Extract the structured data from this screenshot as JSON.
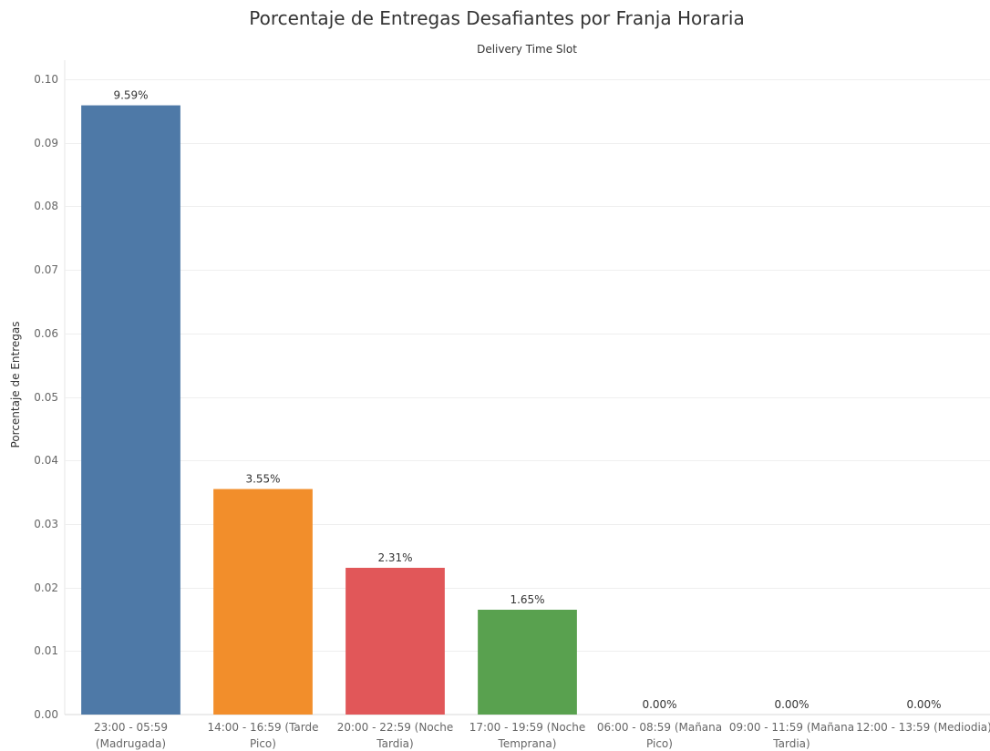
{
  "chart_data": {
    "type": "bar",
    "title": "Porcentaje de Entregas Desafiantes por Franja Horaria",
    "column_header": "Delivery Time Slot",
    "xlabel": "",
    "ylabel": "Porcentaje de Entregas",
    "ylim": [
      0,
      0.1
    ],
    "yticks": [
      "0.00",
      "0.01",
      "0.02",
      "0.03",
      "0.04",
      "0.05",
      "0.06",
      "0.07",
      "0.08",
      "0.09",
      "0.10"
    ],
    "grid": true,
    "categories": [
      [
        "23:00 - 05:59",
        "(Madrugada)"
      ],
      [
        "14:00 - 16:59 (Tarde",
        "Pico)"
      ],
      [
        "20:00 - 22:59 (Noche",
        "Tardia)"
      ],
      [
        "17:00 - 19:59 (Noche",
        "Temprana)"
      ],
      [
        "06:00 - 08:59 (Mañana",
        "Pico)"
      ],
      [
        "09:00 - 11:59 (Mañana",
        "Tardia)"
      ],
      [
        "12:00 - 13:59 (Mediodia)"
      ]
    ],
    "values": [
      0.0959,
      0.0355,
      0.0231,
      0.0165,
      0,
      0,
      0
    ],
    "data_labels": [
      "9.59%",
      "3.55%",
      "2.31%",
      "1.65%",
      "0.00%",
      "0.00%",
      "0.00%"
    ],
    "colors": [
      "#4e79a7",
      "#f28e2b",
      "#e15759",
      "#59a14f",
      "#4e79a7",
      "#4e79a7",
      "#4e79a7"
    ]
  }
}
